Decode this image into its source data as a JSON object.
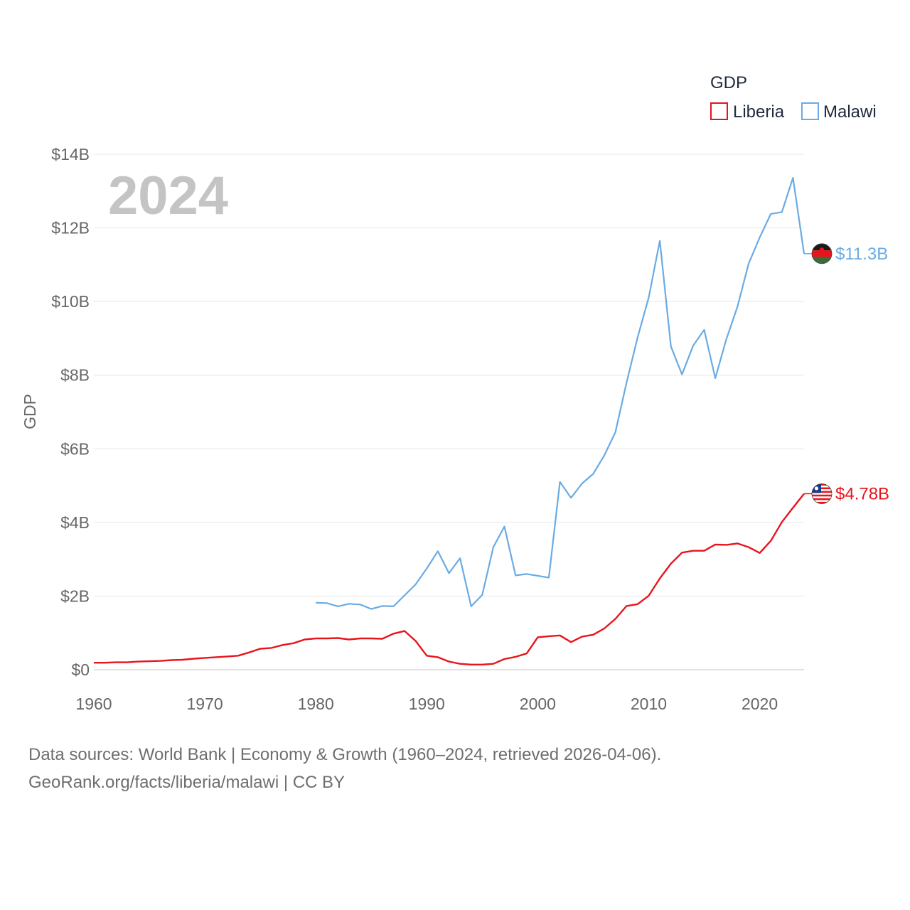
{
  "chart_data": {
    "type": "line",
    "legend_title": "GDP",
    "ylabel": "GDP",
    "xlabel": "",
    "year_badge": "2024",
    "xlim": [
      1960,
      2024
    ],
    "ylim": [
      0,
      14
    ],
    "x_ticks": [
      1960,
      1970,
      1980,
      1990,
      2000,
      2010,
      2020
    ],
    "x_tick_labels": [
      "1960",
      "1970",
      "1980",
      "1990",
      "2000",
      "2010",
      "2020"
    ],
    "y_ticks": [
      0,
      2,
      4,
      6,
      8,
      10,
      12,
      14
    ],
    "y_tick_labels": [
      "$0",
      "$2B",
      "$4B",
      "$6B",
      "$8B",
      "$10B",
      "$12B",
      "$14B"
    ],
    "legend_position": "top-right",
    "grid": true,
    "series": [
      {
        "name": "Liberia",
        "color": "#e8141c",
        "flag_icon": "liberia-flag-icon",
        "end_label": "$4.78B",
        "x": [
          1960,
          1961,
          1962,
          1963,
          1964,
          1965,
          1966,
          1967,
          1968,
          1969,
          1970,
          1971,
          1972,
          1973,
          1974,
          1975,
          1976,
          1977,
          1978,
          1979,
          1980,
          1981,
          1982,
          1983,
          1984,
          1985,
          1986,
          1987,
          1988,
          1989,
          1990,
          1991,
          1992,
          1993,
          1994,
          1995,
          1996,
          1997,
          1998,
          1999,
          2000,
          2001,
          2002,
          2003,
          2004,
          2005,
          2006,
          2007,
          2008,
          2009,
          2010,
          2011,
          2012,
          2013,
          2014,
          2015,
          2016,
          2017,
          2018,
          2019,
          2020,
          2021,
          2022,
          2023,
          2024
        ],
        "values": [
          0.19,
          0.19,
          0.2,
          0.2,
          0.22,
          0.23,
          0.24,
          0.26,
          0.27,
          0.3,
          0.32,
          0.34,
          0.36,
          0.38,
          0.47,
          0.57,
          0.59,
          0.67,
          0.72,
          0.82,
          0.85,
          0.85,
          0.86,
          0.82,
          0.85,
          0.85,
          0.84,
          0.98,
          1.05,
          0.78,
          0.38,
          0.34,
          0.22,
          0.16,
          0.14,
          0.14,
          0.16,
          0.29,
          0.35,
          0.44,
          0.88,
          0.91,
          0.93,
          0.75,
          0.9,
          0.95,
          1.12,
          1.38,
          1.73,
          1.78,
          2.01,
          2.48,
          2.88,
          3.18,
          3.23,
          3.23,
          3.4,
          3.39,
          3.43,
          3.33,
          3.17,
          3.5,
          4.01,
          4.4,
          4.78
        ]
      },
      {
        "name": "Malawi",
        "color": "#6aabe3",
        "flag_icon": "malawi-flag-icon",
        "end_label": "$11.3B",
        "x": [
          1980,
          1981,
          1982,
          1983,
          1984,
          1985,
          1986,
          1987,
          1988,
          1989,
          1990,
          1991,
          1992,
          1993,
          1994,
          1995,
          1996,
          1997,
          1998,
          1999,
          2000,
          2001,
          2002,
          2003,
          2004,
          2005,
          2006,
          2007,
          2008,
          2009,
          2010,
          2011,
          2012,
          2013,
          2014,
          2015,
          2016,
          2017,
          2018,
          2019,
          2020,
          2021,
          2022,
          2023,
          2024
        ],
        "values": [
          1.82,
          1.81,
          1.72,
          1.79,
          1.77,
          1.65,
          1.73,
          1.72,
          2.02,
          2.32,
          2.75,
          3.22,
          2.62,
          3.03,
          1.72,
          2.03,
          3.33,
          3.89,
          2.56,
          2.6,
          2.55,
          2.5,
          5.1,
          4.67,
          5.06,
          5.32,
          5.82,
          6.45,
          7.8,
          9.03,
          10.11,
          11.65,
          8.78,
          8.02,
          8.8,
          9.23,
          7.92,
          8.98,
          9.86,
          11.03,
          11.74,
          12.38,
          12.43,
          13.36,
          11.3
        ]
      }
    ]
  },
  "footer": {
    "line1": "Data sources: World Bank | Economy & Growth (1960–2024, retrieved 2026-04-06).",
    "line2": "GeoRank.org/facts/liberia/malawi | CC BY"
  }
}
